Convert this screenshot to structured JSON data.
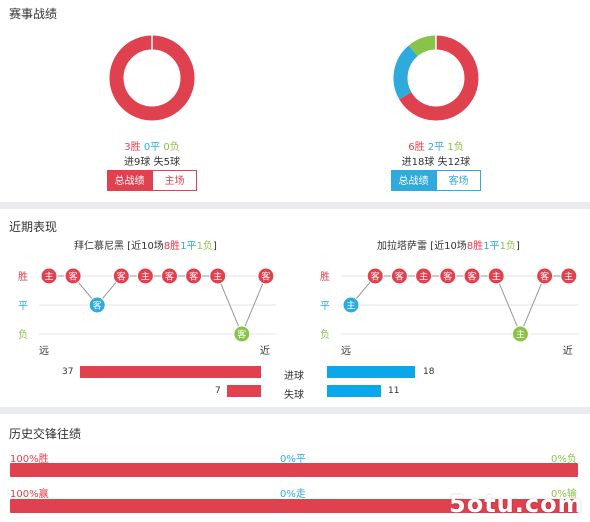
{
  "section1": {
    "title": "赛事战绩",
    "left": {
      "win": "3胜",
      "draw": "0平",
      "loss": "0负",
      "goals": "进9球 失5球",
      "tab_active": "总战绩",
      "tab_other": "主场",
      "donut": [
        {
          "value": 3,
          "color": "#e0414f"
        },
        {
          "value": 0,
          "color": "#2eaadc"
        },
        {
          "value": 0,
          "color": "#8bc34a"
        }
      ]
    },
    "right": {
      "win": "6胜",
      "draw": "2平",
      "loss": "1负",
      "goals": "进18球 失12球",
      "tab_active": "总战绩",
      "tab_other": "客场",
      "donut": [
        {
          "value": 6,
          "color": "#e0414f"
        },
        {
          "value": 2,
          "color": "#2eaadc"
        },
        {
          "value": 1,
          "color": "#8bc34a"
        }
      ]
    }
  },
  "section2": {
    "title": "近期表现",
    "left": {
      "team": "拜仁慕尼黑",
      "summary_pre": " [近10场",
      "win": "8胜",
      "draw": "1平",
      "loss": "1负",
      "summary_post": "]",
      "y_win": "胜",
      "y_draw": "平",
      "y_loss": "负",
      "x_far": "远",
      "x_near": "近",
      "matches": [
        {
          "venue": "主",
          "result": "W"
        },
        {
          "venue": "客",
          "result": "W"
        },
        {
          "venue": "客",
          "result": "D"
        },
        {
          "venue": "客",
          "result": "W"
        },
        {
          "venue": "主",
          "result": "W"
        },
        {
          "venue": "客",
          "result": "W"
        },
        {
          "venue": "客",
          "result": "W"
        },
        {
          "venue": "主",
          "result": "W"
        },
        {
          "venue": "客",
          "result": "L"
        },
        {
          "venue": "客",
          "result": "W"
        }
      ]
    },
    "right": {
      "team": "加拉塔萨雷",
      "summary_pre": " [近10场",
      "win": "8胜",
      "draw": "1平",
      "loss": "1负",
      "summary_post": "]",
      "y_win": "胜",
      "y_draw": "平",
      "y_loss": "负",
      "x_far": "远",
      "x_near": "近",
      "matches": [
        {
          "venue": "主",
          "result": "D"
        },
        {
          "venue": "客",
          "result": "W"
        },
        {
          "venue": "客",
          "result": "W"
        },
        {
          "venue": "主",
          "result": "W"
        },
        {
          "venue": "客",
          "result": "W"
        },
        {
          "venue": "客",
          "result": "W"
        },
        {
          "venue": "主",
          "result": "W"
        },
        {
          "venue": "主",
          "result": "L"
        },
        {
          "venue": "客",
          "result": "W"
        },
        {
          "venue": "主",
          "result": "W"
        }
      ]
    },
    "goals_label": "进球",
    "conceded_label": "失球",
    "left_goals": 37,
    "left_conceded": 7,
    "right_goals": 18,
    "right_conceded": 11
  },
  "section3": {
    "title": "历史交锋往绩",
    "row1": {
      "left": "100%胜",
      "mid": "0%平",
      "right": "0%负"
    },
    "row2": {
      "left": "100%赢",
      "mid": "0%走",
      "right": "0%输"
    }
  },
  "watermark": "5otu.com"
}
